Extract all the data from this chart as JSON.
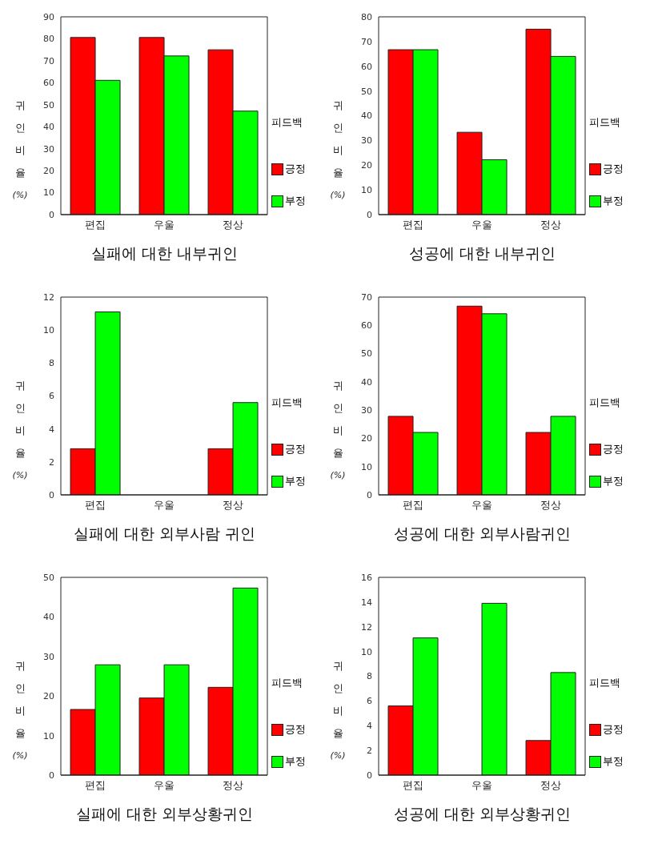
{
  "chart_data": [
    {
      "type": "bar",
      "title": "실패에 대한 내부귀인",
      "ylabel": "귀인비율 (%)",
      "legend_title": "피드백",
      "categories": [
        "편집",
        "우울",
        "정상"
      ],
      "ylim": [
        0,
        90
      ],
      "yticks": [
        0,
        10,
        20,
        30,
        40,
        50,
        60,
        70,
        80,
        90
      ],
      "grid": false,
      "legend": "right",
      "series": [
        {
          "name": "긍정",
          "color": "#ff0000",
          "values": [
            80.6,
            80.6,
            75.0
          ]
        },
        {
          "name": "부정",
          "color": "#00ff00",
          "values": [
            61.1,
            72.2,
            47.1
          ]
        }
      ]
    },
    {
      "type": "bar",
      "title": "성공에 대한 내부귀인",
      "ylabel": "귀인비율 (%)",
      "legend_title": "피드백",
      "categories": [
        "편집",
        "우울",
        "정상"
      ],
      "ylim": [
        0,
        80
      ],
      "yticks": [
        0,
        10,
        20,
        30,
        40,
        50,
        60,
        70,
        80
      ],
      "grid": false,
      "legend": "right",
      "series": [
        {
          "name": "긍정",
          "color": "#ff0000",
          "values": [
            66.7,
            33.3,
            75.0
          ]
        },
        {
          "name": "부정",
          "color": "#00ff00",
          "values": [
            66.7,
            22.2,
            64.0
          ]
        }
      ]
    },
    {
      "type": "bar",
      "title": "실패에 대한 외부사람 귀인",
      "ylabel": "귀인비율 (%)",
      "legend_title": "피드백",
      "categories": [
        "편집",
        "우울",
        "정상"
      ],
      "ylim": [
        0,
        12
      ],
      "yticks": [
        0,
        2,
        4,
        6,
        8,
        10,
        12
      ],
      "grid": false,
      "legend": "right",
      "series": [
        {
          "name": "긍정",
          "color": "#ff0000",
          "values": [
            2.8,
            0,
            2.8
          ]
        },
        {
          "name": "부정",
          "color": "#00ff00",
          "values": [
            11.1,
            0,
            5.6
          ]
        }
      ]
    },
    {
      "type": "bar",
      "title": "성공에 대한 외부사람귀인",
      "ylabel": "귀인비율 (%)",
      "legend_title": "피드백",
      "categories": [
        "편집",
        "우울",
        "정상"
      ],
      "ylim": [
        0,
        70
      ],
      "yticks": [
        0,
        10,
        20,
        30,
        40,
        50,
        60,
        70
      ],
      "grid": false,
      "legend": "right",
      "series": [
        {
          "name": "긍정",
          "color": "#ff0000",
          "values": [
            27.8,
            66.8,
            22.1
          ]
        },
        {
          "name": "부정",
          "color": "#00ff00",
          "values": [
            22.1,
            64.1,
            27.8
          ]
        }
      ]
    },
    {
      "type": "bar",
      "title": "실패에 대한 외부상황귀인",
      "ylabel": "귀인비율 (%)",
      "legend_title": "피드백",
      "categories": [
        "편집",
        "우울",
        "정상"
      ],
      "ylim": [
        0,
        50
      ],
      "yticks": [
        0,
        10,
        20,
        30,
        40,
        50
      ],
      "grid": false,
      "legend": "right",
      "series": [
        {
          "name": "긍정",
          "color": "#ff0000",
          "values": [
            16.6,
            19.5,
            22.2
          ]
        },
        {
          "name": "부정",
          "color": "#00ff00",
          "values": [
            27.9,
            27.9,
            47.3
          ]
        }
      ]
    },
    {
      "type": "bar",
      "title": "성공에 대한 외부상황귀인",
      "ylabel": "귀인비율 (%)",
      "legend_title": "피드백",
      "categories": [
        "편집",
        "우울",
        "정상"
      ],
      "ylim": [
        0,
        16
      ],
      "yticks": [
        0,
        2,
        4,
        6,
        8,
        10,
        12,
        14,
        16
      ],
      "grid": false,
      "legend": "right",
      "series": [
        {
          "name": "긍정",
          "color": "#ff0000",
          "values": [
            5.6,
            0,
            2.8
          ]
        },
        {
          "name": "부정",
          "color": "#00ff00",
          "values": [
            11.1,
            13.9,
            8.3
          ]
        }
      ]
    }
  ]
}
